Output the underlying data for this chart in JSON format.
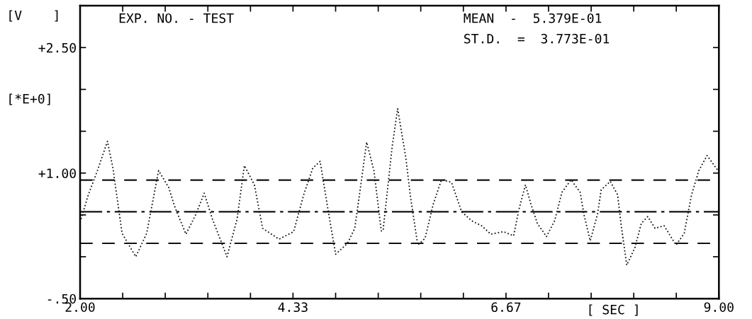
{
  "chart_data": {
    "type": "line",
    "title": "EXP. NO. - TEST",
    "ylabel": "[V    ]",
    "xlabel": "[ SEC ]",
    "annotations": [
      "[*E+0]",
      "MEAN  -  5.379E-01",
      "ST.D.  =  3.773E-01"
    ],
    "x": [
      2.01,
      2.09,
      2.19,
      2.3,
      2.36,
      2.46,
      2.61,
      2.73,
      2.86,
      2.97,
      3.04,
      3.16,
      3.27,
      3.36,
      3.45,
      3.61,
      3.72,
      3.8,
      3.91,
      4.0,
      4.18,
      4.34,
      4.45,
      4.55,
      4.63,
      4.72,
      4.8,
      4.93,
      5.01,
      5.08,
      5.14,
      5.22,
      5.3,
      5.32,
      5.42,
      5.48,
      5.57,
      5.62,
      5.7,
      5.78,
      5.87,
      5.96,
      6.07,
      6.18,
      6.29,
      6.4,
      6.5,
      6.64,
      6.75,
      6.81,
      6.88,
      6.94,
      7.01,
      7.11,
      7.2,
      7.28,
      7.38,
      7.48,
      7.52,
      7.59,
      7.67,
      7.71,
      7.81,
      7.89,
      7.93,
      7.99,
      8.08,
      8.15,
      8.22,
      8.3,
      8.4,
      8.53,
      8.62,
      8.7,
      8.78,
      8.87,
      8.99
    ],
    "series": [
      {
        "color": "#111111",
        "values": [
          0.45,
          0.74,
          1.03,
          1.38,
          1.06,
          0.28,
          0.0,
          0.28,
          1.03,
          0.83,
          0.59,
          0.27,
          0.51,
          0.76,
          0.45,
          0.0,
          0.45,
          1.09,
          0.86,
          0.34,
          0.21,
          0.3,
          0.74,
          1.06,
          1.14,
          0.54,
          0.03,
          0.16,
          0.34,
          0.89,
          1.37,
          1.03,
          0.31,
          0.31,
          1.32,
          1.77,
          1.18,
          0.72,
          0.14,
          0.22,
          0.63,
          0.92,
          0.89,
          0.54,
          0.43,
          0.37,
          0.27,
          0.3,
          0.25,
          0.57,
          0.86,
          0.63,
          0.4,
          0.24,
          0.43,
          0.77,
          0.92,
          0.77,
          0.51,
          0.19,
          0.51,
          0.8,
          0.9,
          0.74,
          0.37,
          -0.1,
          0.11,
          0.4,
          0.48,
          0.34,
          0.37,
          0.14,
          0.28,
          0.74,
          1.03,
          1.21,
          1.03
        ]
      }
    ],
    "line_style": "dotted",
    "marker": "none",
    "xlim": [
      2.0,
      9.0
    ],
    "ylim": [
      -0.5,
      3.0
    ],
    "xticks": [
      {
        "value": 2.0,
        "label": "2.00"
      },
      {
        "value": 2.467,
        "label": null
      },
      {
        "value": 2.933,
        "label": null
      },
      {
        "value": 3.4,
        "label": null
      },
      {
        "value": 3.867,
        "label": null
      },
      {
        "value": 4.333,
        "label": "4.33"
      },
      {
        "value": 4.8,
        "label": null
      },
      {
        "value": 5.267,
        "label": null
      },
      {
        "value": 5.733,
        "label": null
      },
      {
        "value": 6.2,
        "label": null
      },
      {
        "value": 6.667,
        "label": "6.67"
      },
      {
        "value": 7.133,
        "label": null
      },
      {
        "value": 7.6,
        "label": null
      },
      {
        "value": 8.067,
        "label": null
      },
      {
        "value": 8.533,
        "label": null
      },
      {
        "value": 9.0,
        "label": "9.00"
      }
    ],
    "yticks": [
      {
        "value": -0.5,
        "label": "-.50"
      },
      {
        "value": 0.0,
        "label": null
      },
      {
        "value": 0.5,
        "label": null
      },
      {
        "value": 1.0,
        "label": "+1.00"
      },
      {
        "value": 1.5,
        "label": null
      },
      {
        "value": 2.0,
        "label": null
      },
      {
        "value": 2.5,
        "label": "+2.50"
      }
    ],
    "ref_lines": [
      {
        "axis": "y",
        "value": 0.9152,
        "color": "#111111",
        "line_style": "dashed"
      },
      {
        "axis": "y",
        "value": 0.5379,
        "color": "#111111",
        "line_style": "dashdot"
      },
      {
        "axis": "y",
        "value": 0.1606,
        "color": "#111111",
        "line_style": "dashed"
      }
    ],
    "grid": false,
    "legend": false
  }
}
